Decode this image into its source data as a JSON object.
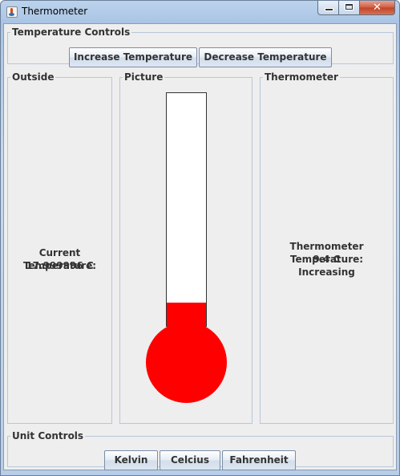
{
  "window": {
    "title": "Thermometer",
    "close_glyph": "✕"
  },
  "temperature_controls": {
    "legend": "Temperature Controls",
    "increase_label": "Increase Temperature",
    "decrease_label": "Decrease Temperature"
  },
  "outside": {
    "legend": "Outside",
    "label": "Current Temperature:",
    "value": "17.999996 C"
  },
  "picture": {
    "legend": "Picture",
    "fill_fraction": 0.1,
    "fill_color": "#ff0000"
  },
  "thermometer": {
    "legend": "Thermometer",
    "label": "Thermometer Temperature:",
    "value": "9.4 C",
    "status": "Increasing"
  },
  "unit_controls": {
    "legend": "Unit Controls",
    "kelvin_label": "Kelvin",
    "celcius_label": "Celcius",
    "fahrenheit_label": "Fahrenheit"
  }
}
